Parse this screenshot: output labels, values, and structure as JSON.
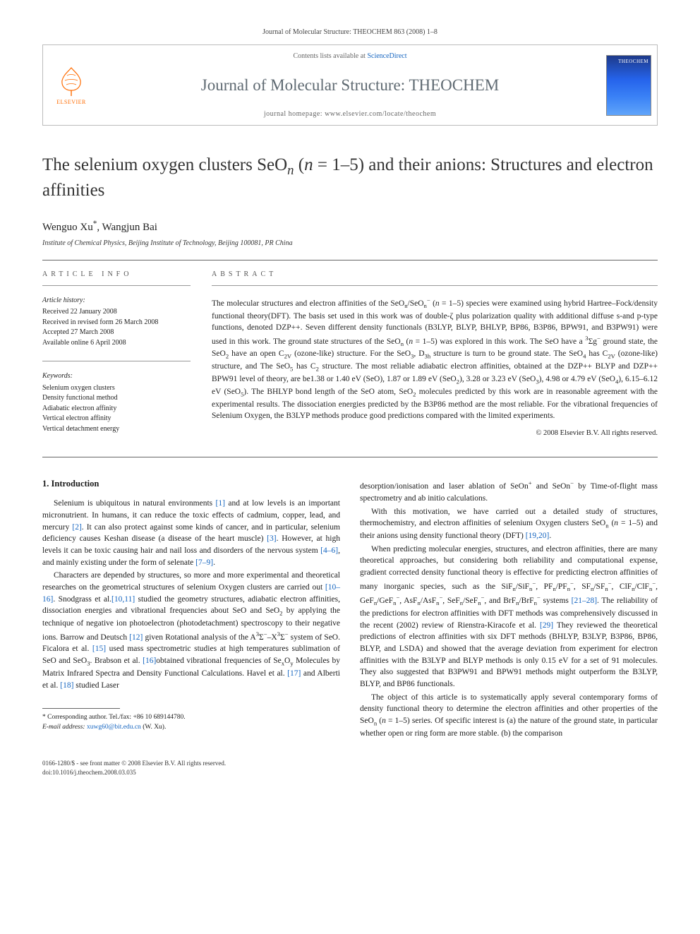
{
  "header": {
    "citation": "Journal of Molecular Structure: THEOCHEM 863 (2008) 1–8",
    "contents_prefix": "Contents lists available at ",
    "contents_link": "ScienceDirect",
    "journal_name": "Journal of Molecular Structure: THEOCHEM",
    "homepage_prefix": "journal homepage: ",
    "homepage_url": "www.elsevier.com/locate/theochem",
    "elsevier_label": "ELSEVIER",
    "cover_label": "THEOCHEM"
  },
  "article": {
    "title_html": "The selenium oxygen clusters SeO<sub><i>n</i></sub> (<i>n</i> = 1–5) and their anions: Structures and electron affinities",
    "authors_html": "Wenguo Xu<sup>*</sup>, Wangjun Bai",
    "affiliation": "Institute of Chemical Physics, Beijing Institute of Technology, Beijing 100081, PR China"
  },
  "info": {
    "heading": "ARTICLE INFO",
    "history_title": "Article history:",
    "history": [
      "Received 22 January 2008",
      "Received in revised form 26 March 2008",
      "Accepted 27 March 2008",
      "Available online 6 April 2008"
    ],
    "keywords_title": "Keywords:",
    "keywords": [
      "Selenium oxygen clusters",
      "Density functional method",
      "Adiabatic electron affinity",
      "Vertical electron affinity",
      "Vertical detachment energy"
    ]
  },
  "abstract": {
    "heading": "ABSTRACT",
    "text_html": "The molecular structures and electron affinities of the SeO<sub>n</sub>/SeO<sub>n</sub><sup>−</sup> (<i>n</i> = 1–5) species were examined using hybrid Hartree–Fock/density functional theory(DFT). The basis set used in this work was of double-ζ plus polarization quality with additional diffuse s-and p-type functions, denoted DZP++. Seven different density functionals (B3LYP, BLYP, BHLYP, BP86, B3P86, BPW91, and B3PW91) were used in this work. The ground state structures of the SeO<sub>n</sub> (<i>n</i> = 1–5) was explored in this work. The SeO have a <sup>3</sup>Σg<sup>−</sup> ground state, the SeO<sub>2</sub> have an open C<sub>2V</sub> (ozone-like) structure. For the SeO<sub>3</sub>, D<sub>3h</sub> structure is turn to be ground state. The SeO<sub>4</sub> has C<sub>2V</sub> (ozone-like) structure, and The SeO<sub>5</sub> has C<sub>2</sub> structure. The most reliable adiabatic electron affinities, obtained at the DZP++ BLYP and DZP++ BPW91 level of theory, are be1.38 or 1.40 eV (SeO), 1.87 or 1.89 eV (SeO<sub>2</sub>), 3.28 or 3.23 eV (SeO<sub>3</sub>), 4.98 or 4.79 eV (SeO<sub>4</sub>), 6.15–6.12 eV (SeO<sub>5</sub>). The BHLYP bond length of the SeO atom, SeO<sub>2</sub> molecules predicted by this work are in reasonable agreement with the experimental results. The dissociation energies predicted by the B3P86 method are the most reliable. For the vibrational frequencies of Selenium Oxygen, the B3LYP methods produce good predictions compared with the limited experiments.",
    "copyright": "© 2008 Elsevier B.V. All rights reserved."
  },
  "body": {
    "intro_heading": "1. Introduction",
    "left_paras_html": [
      "Selenium is ubiquitous in natural environments <a href='#'>[1]</a> and at low levels is an important micronutrient. In humans, it can reduce the toxic effects of cadmium, copper, lead, and mercury <a href='#'>[2]</a>. It can also protect against some kinds of cancer, and in particular, selenium deficiency causes Keshan disease (a disease of the heart muscle) <a href='#'>[3]</a>. However, at high levels it can be toxic causing hair and nail loss and disorders of the nervous system <a href='#'>[4–6]</a>, and mainly existing under the form of selenate <a href='#'>[7–9]</a>.",
      "Characters are depended by structures, so more and more experimental and theoretical researches on the geometrical structures of selenium Oxygen clusters are carried out <a href='#'>[10–16]</a>. Snodgrass et al.<a href='#'>[10,11]</a> studied the geometry structures, adiabatic electron affinities, dissociation energies and vibrational frequencies about SeO and SeO<sub>2</sub> by applying the technique of negative ion photoelectron (photodetachment) spectroscopy to their negative ions. Barrow and Deutsch <a href='#'>[12]</a> given Rotational analysis of the A<sup>3</sup>Σ<sup>−</sup>–X<sup>3</sup>Σ<sup>−</sup> system of SeO. Ficalora et al. <a href='#'>[15]</a> used mass spectrometric studies at high temperatures sublimation of SeO and SeO<sub>3</sub>. Brabson et al. <a href='#'>[16]</a>obtained vibrational frequencies of Se<sub>x</sub>O<sub>y</sub> Molecules by Matrix Infrared Spectra and Density Functional Calculations. Havel et al. <a href='#'>[17]</a> and Alberti et al. <a href='#'>[18]</a> studied Laser"
    ],
    "right_paras_html": [
      "desorption/ionisation and laser ablation of SeOn<sup>+</sup> and SeOn<sup>−</sup> by Time-of-flight mass spectrometry and ab initio calculations.",
      "With this motivation, we have carried out a detailed study of structures, thermochemistry, and electron affinities of selenium Oxygen clusters SeO<sub>n</sub> (<i>n</i> = 1–5) and their anions using density functional theory (DFT) <a href='#'>[19,20]</a>.",
      "When predicting molecular energies, structures, and electron affinities, there are many theoretical approaches, but considering both reliability and computational expense, gradient corrected density functional theory is effective for predicting electron affinities of many inorganic species, such as the SiF<sub>n</sub>/SiF<sub>n</sub><sup>−</sup>, PF<sub>n</sub>/PF<sub>n</sub><sup>−</sup>, SF<sub>n</sub>/SF<sub>n</sub><sup>−</sup>, ClF<sub>n</sub>/ClF<sub>n</sub><sup>−</sup>, GeF<sub>n</sub>/GeF<sub>n</sub><sup>−</sup>, AsF<sub>n</sub>/AsF<sub>n</sub><sup>−</sup>, SeF<sub>n</sub>/SeF<sub>n</sub><sup>−</sup>, and BrF<sub>n</sub>/BrF<sub>n</sub><sup>−</sup> systems <a href='#'>[21–28]</a>. The reliability of the predictions for electron affinities with DFT methods was comprehensively discussed in the recent (2002) review of Rienstra-Kiracofe et al. <a href='#'>[29]</a> They reviewed the theoretical predictions of electron affinities with six DFT methods (BHLYP, B3LYP, B3P86, BP86, BLYP, and LSDA) and showed that the average deviation from experiment for electron affinities with the B3LYP and BLYP methods is only 0.15 eV for a set of 91 molecules. They also suggested that B3PW91 and BPW91 methods might outperform the B3LYP, BLYP, and BP86 functionals.",
      "The object of this article is to systematically apply several contemporary forms of density functional theory to determine the electron affinities and other properties of the SeO<sub>n</sub> (<i>n</i> = 1–5) series. Of specific interest is (a) the nature of the ground state, in particular whether open or ring form are more stable. (b) the comparison"
    ]
  },
  "footnote": {
    "corr": "* Corresponding author. Tel./fax: +86 10 689144780.",
    "email_label": "E-mail address:",
    "email": "xuwg60@bit.edu.cn",
    "email_suffix": "(W. Xu)."
  },
  "footer": {
    "line1": "0166-1280/$ - see front matter © 2008 Elsevier B.V. All rights reserved.",
    "line2": "doi:10.1016/j.theochem.2008.03.035"
  },
  "colors": {
    "link": "#1565c0",
    "elsevier_orange": "#ff6b00",
    "journal_gray": "#5f6a72",
    "border": "#bbbbbb"
  }
}
